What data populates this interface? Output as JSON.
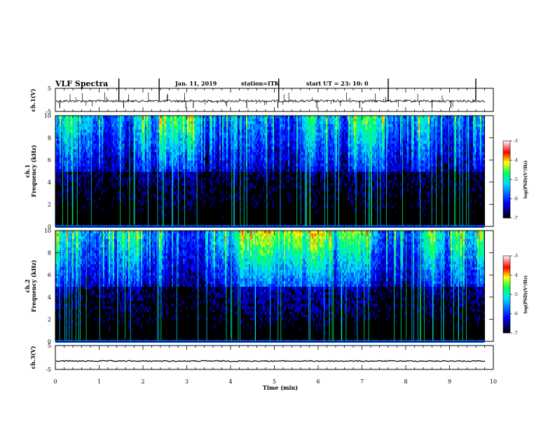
{
  "header": {
    "title": "VLF Spectra",
    "date": "Jan. 11, 2019",
    "station": "station=ITK",
    "start": "start UT =  23: 10: 0"
  },
  "chart_data": [
    {
      "type": "line",
      "ylabel": "ch.1(V)",
      "yticks": [
        "5",
        "-5"
      ],
      "ylim": [
        -5,
        5
      ],
      "baseline": -0.5,
      "spikes_up_min": [
        1.45,
        2.37,
        5.1,
        7.6,
        9.6
      ],
      "spikes_down_min": [
        0.1,
        1.56,
        2.98,
        3.15,
        4.37,
        5.08,
        5.97,
        6.95,
        8.6,
        9.03
      ]
    },
    {
      "type": "heatmap",
      "ylabel": "ch.1\nFrequency (kHz)",
      "yticks": [
        "0",
        "2",
        "4",
        "6",
        "8",
        "10"
      ],
      "ylim": [
        0,
        10
      ],
      "xlim": [
        0,
        10
      ],
      "colorbar": {
        "ticks": [
          "-3",
          "-4",
          "-5",
          "-6",
          "-7"
        ],
        "label": "log(PSD)(V²/Hz)",
        "range": [
          -7,
          -3
        ]
      }
    },
    {
      "type": "heatmap",
      "ylabel": "ch.2\nFrequency (kHz)",
      "yticks": [
        "0",
        "2",
        "4",
        "6",
        "8",
        "10"
      ],
      "ylim": [
        0,
        10
      ],
      "xlim": [
        0,
        10
      ],
      "colorbar": {
        "ticks": [
          "-3",
          "-4",
          "-5",
          "-6",
          "-7"
        ],
        "label": "log(PSD)(V²/Hz)",
        "range": [
          -7,
          -3
        ]
      }
    },
    {
      "type": "line",
      "ylabel": "ch.3(V)",
      "yticks": [
        "5",
        "-5"
      ],
      "ylim": [
        -5,
        5
      ],
      "baseline": -1.5
    }
  ],
  "xaxis": {
    "label": "Time (min)",
    "ticks": [
      "0",
      "1",
      "2",
      "3",
      "4",
      "5",
      "6",
      "7",
      "8",
      "9",
      "10"
    ],
    "range": [
      0,
      10
    ]
  },
  "colors": {
    "black": "#000000",
    "blue": "#0000ff",
    "cyan": "#00e0ff",
    "green": "#00ff60",
    "yellow": "#ffff00",
    "red": "#ff0000"
  }
}
